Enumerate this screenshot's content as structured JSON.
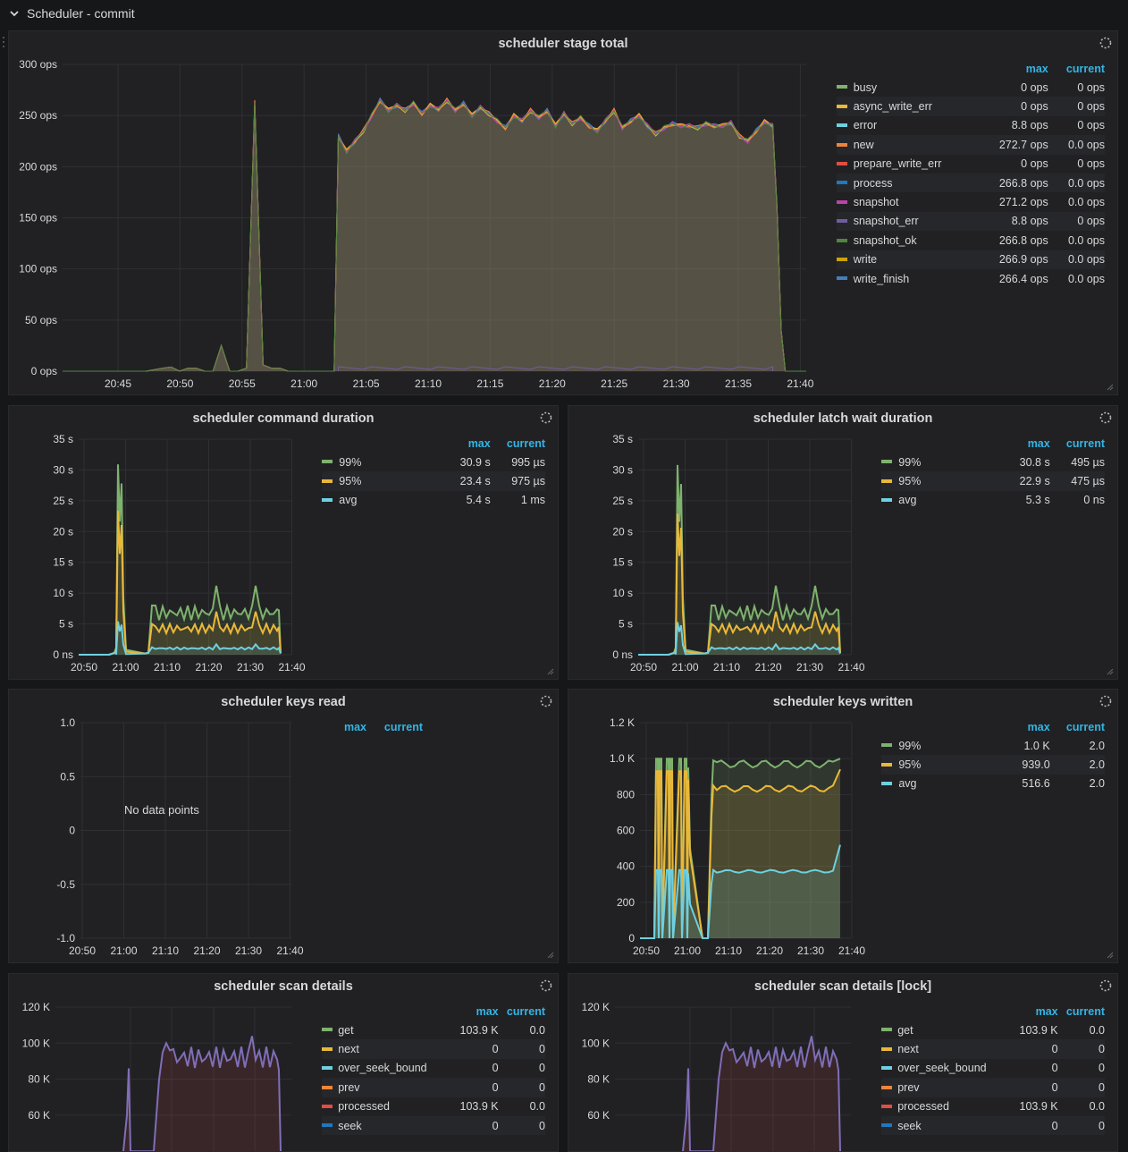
{
  "row": {
    "title": "Scheduler - commit"
  },
  "legend_headers": {
    "max": "max",
    "current": "current"
  },
  "panels": {
    "stage_total": {
      "title": "scheduler stage total",
      "legend": [
        {
          "name": "busy",
          "color": "#7eb26d",
          "max": "0 ops",
          "current": "0 ops"
        },
        {
          "name": "async_write_err",
          "color": "#eab839",
          "max": "0 ops",
          "current": "0 ops"
        },
        {
          "name": "error",
          "color": "#6ed0e0",
          "max": "8.8 ops",
          "current": "0 ops"
        },
        {
          "name": "new",
          "color": "#ef843c",
          "max": "272.7 ops",
          "current": "0.0 ops"
        },
        {
          "name": "prepare_write_err",
          "color": "#e24d42",
          "max": "0 ops",
          "current": "0 ops"
        },
        {
          "name": "process",
          "color": "#1f78c1",
          "max": "266.8 ops",
          "current": "0.0 ops"
        },
        {
          "name": "snapshot",
          "color": "#ba43a9",
          "max": "271.2 ops",
          "current": "0.0 ops"
        },
        {
          "name": "snapshot_err",
          "color": "#705da0",
          "max": "8.8 ops",
          "current": "0 ops"
        },
        {
          "name": "snapshot_ok",
          "color": "#508642",
          "max": "266.8 ops",
          "current": "0.0 ops"
        },
        {
          "name": "write",
          "color": "#cca300",
          "max": "266.9 ops",
          "current": "0.0 ops"
        },
        {
          "name": "write_finish",
          "color": "#447ebc",
          "max": "266.4 ops",
          "current": "0.0 ops"
        }
      ]
    },
    "command_duration": {
      "title": "scheduler command duration",
      "legend": [
        {
          "name": "99%",
          "color": "#7eb26d",
          "max": "30.9 s",
          "current": "995 µs"
        },
        {
          "name": "95%",
          "color": "#eab839",
          "max": "23.4 s",
          "current": "975 µs"
        },
        {
          "name": "avg",
          "color": "#6ed0e0",
          "max": "5.4 s",
          "current": "1 ms"
        }
      ]
    },
    "latch_wait": {
      "title": "scheduler latch wait duration",
      "legend": [
        {
          "name": "99%",
          "color": "#7eb26d",
          "max": "30.8 s",
          "current": "495 µs"
        },
        {
          "name": "95%",
          "color": "#eab839",
          "max": "22.9 s",
          "current": "475 µs"
        },
        {
          "name": "avg",
          "color": "#6ed0e0",
          "max": "5.3 s",
          "current": "0 ns"
        }
      ]
    },
    "keys_read": {
      "title": "scheduler keys read",
      "no_data": "No data points",
      "legend": []
    },
    "keys_written": {
      "title": "scheduler keys written",
      "legend": [
        {
          "name": "99%",
          "color": "#7eb26d",
          "max": "1.0 K",
          "current": "2.0"
        },
        {
          "name": "95%",
          "color": "#eab839",
          "max": "939.0",
          "current": "2.0"
        },
        {
          "name": "avg",
          "color": "#6ed0e0",
          "max": "516.6",
          "current": "2.0"
        }
      ]
    },
    "scan_details": {
      "title": "scheduler scan details",
      "legend": [
        {
          "name": "get",
          "color": "#7eb26d",
          "max": "103.9 K",
          "current": "0.0"
        },
        {
          "name": "next",
          "color": "#eab839",
          "max": "0",
          "current": "0"
        },
        {
          "name": "over_seek_bound",
          "color": "#6ed0e0",
          "max": "0",
          "current": "0"
        },
        {
          "name": "prev",
          "color": "#ef843c",
          "max": "0",
          "current": "0"
        },
        {
          "name": "processed",
          "color": "#e24d42",
          "max": "103.9 K",
          "current": "0.0"
        },
        {
          "name": "seek",
          "color": "#1f78c1",
          "max": "0",
          "current": "0"
        }
      ]
    },
    "scan_details_lock": {
      "title": "scheduler scan details [lock]",
      "legend": [
        {
          "name": "get",
          "color": "#7eb26d",
          "max": "103.9 K",
          "current": "0.0"
        },
        {
          "name": "next",
          "color": "#eab839",
          "max": "0",
          "current": "0"
        },
        {
          "name": "over_seek_bound",
          "color": "#6ed0e0",
          "max": "0",
          "current": "0"
        },
        {
          "name": "prev",
          "color": "#ef843c",
          "max": "0",
          "current": "0"
        },
        {
          "name": "processed",
          "color": "#e24d42",
          "max": "103.9 K",
          "current": "0.0"
        },
        {
          "name": "seek",
          "color": "#1f78c1",
          "max": "0",
          "current": "0"
        }
      ]
    }
  },
  "chart_data": [
    {
      "id": "stage_total",
      "type": "area",
      "title": "scheduler stage total",
      "yticks": [
        "300 ops",
        "250 ops",
        "200 ops",
        "150 ops",
        "100 ops",
        "50 ops",
        "0 ops"
      ],
      "xticks": [
        "20:45",
        "20:50",
        "20:55",
        "21:00",
        "21:05",
        "21:10",
        "21:15",
        "21:20",
        "21:25",
        "21:30",
        "21:35",
        "21:40"
      ],
      "ylim": [
        0,
        300
      ],
      "xlim_minutes": [
        20.0,
        80.5
      ],
      "grid": true,
      "legend_position": "right",
      "series_shape": [
        [
          20,
          0
        ],
        [
          30,
          0
        ],
        [
          32,
          3
        ],
        [
          33,
          4
        ],
        [
          34,
          0
        ],
        [
          35,
          3
        ],
        [
          36,
          3
        ],
        [
          37,
          0
        ],
        [
          38,
          0
        ],
        [
          39,
          25
        ],
        [
          40,
          0
        ],
        [
          41,
          0
        ],
        [
          42,
          3
        ],
        [
          43,
          263
        ],
        [
          44,
          6
        ],
        [
          45,
          3
        ],
        [
          46,
          3
        ],
        [
          47,
          0
        ],
        [
          52,
          0
        ],
        [
          52.5,
          0
        ],
        [
          53,
          230
        ],
        [
          54,
          215
        ],
        [
          55,
          225
        ],
        [
          56,
          235
        ],
        [
          57,
          250
        ],
        [
          58,
          265
        ],
        [
          59,
          255
        ],
        [
          60,
          260
        ],
        [
          61,
          255
        ],
        [
          62,
          262
        ],
        [
          63,
          252
        ],
        [
          64,
          260
        ],
        [
          65,
          256
        ],
        [
          66,
          265
        ],
        [
          67,
          255
        ],
        [
          68,
          262
        ],
        [
          69,
          250
        ],
        [
          70,
          258
        ],
        [
          71,
          252
        ],
        [
          72,
          245
        ],
        [
          73,
          238
        ],
        [
          74,
          250
        ],
        [
          75,
          245
        ],
        [
          76,
          255
        ],
        [
          77,
          248
        ],
        [
          78,
          255
        ],
        [
          79,
          240
        ],
        [
          80,
          252
        ],
        [
          81,
          242
        ],
        [
          82,
          248
        ],
        [
          83,
          240
        ],
        [
          84,
          235
        ],
        [
          85,
          245
        ],
        [
          86,
          255
        ],
        [
          87,
          238
        ],
        [
          88,
          245
        ],
        [
          89,
          250
        ],
        [
          90,
          240
        ],
        [
          91,
          232
        ],
        [
          92,
          238
        ],
        [
          93,
          242
        ],
        [
          94,
          240
        ],
        [
          95,
          240
        ],
        [
          96,
          238
        ],
        [
          97,
          242
        ],
        [
          98,
          240
        ],
        [
          99,
          240
        ],
        [
          100,
          243
        ],
        [
          101,
          230
        ],
        [
          102,
          225
        ],
        [
          103,
          235
        ],
        [
          104,
          244
        ],
        [
          105,
          240
        ],
        [
          105.5,
          160
        ],
        [
          106,
          40
        ],
        [
          106.5,
          0
        ],
        [
          109,
          0
        ]
      ],
      "series_shape_note_unused": ""
    },
    {
      "id": "command_duration",
      "type": "area",
      "title": "scheduler command duration",
      "yticks": [
        "35 s",
        "30 s",
        "25 s",
        "20 s",
        "15 s",
        "10 s",
        "5 s",
        "0 ns"
      ],
      "xticks": [
        "20:50",
        "21:00",
        "21:10",
        "21:20",
        "21:30",
        "21:40"
      ],
      "ylim": [
        0,
        35
      ],
      "grid": true,
      "legend_position": "right",
      "series": [
        {
          "name": "99%",
          "peak": 30.9,
          "plateau": 8
        },
        {
          "name": "95%",
          "peak": 23.4,
          "plateau": 5
        },
        {
          "name": "avg",
          "peak": 5.4,
          "plateau": 1.2
        }
      ]
    },
    {
      "id": "latch_wait",
      "type": "area",
      "title": "scheduler latch wait duration",
      "yticks": [
        "35 s",
        "30 s",
        "25 s",
        "20 s",
        "15 s",
        "10 s",
        "5 s",
        "0 ns"
      ],
      "xticks": [
        "20:50",
        "21:00",
        "21:10",
        "21:20",
        "21:30",
        "21:40"
      ],
      "ylim": [
        0,
        35
      ],
      "grid": true,
      "legend_position": "right",
      "series": [
        {
          "name": "99%",
          "peak": 30.8,
          "plateau": 8
        },
        {
          "name": "95%",
          "peak": 22.9,
          "plateau": 5
        },
        {
          "name": "avg",
          "peak": 5.3,
          "plateau": 1.2
        }
      ]
    },
    {
      "id": "keys_read",
      "type": "line",
      "title": "scheduler keys read",
      "yticks": [
        "1.0",
        "0.5",
        "0",
        "-0.5",
        "-1.0"
      ],
      "xticks": [
        "20:50",
        "21:00",
        "21:10",
        "21:20",
        "21:30",
        "21:40"
      ],
      "ylim": [
        -1,
        1
      ],
      "grid": true,
      "series": []
    },
    {
      "id": "keys_written",
      "type": "area",
      "title": "scheduler keys written",
      "yticks": [
        "1.2 K",
        "1.0 K",
        "800",
        "600",
        "400",
        "200",
        "0"
      ],
      "xticks": [
        "20:50",
        "21:00",
        "21:10",
        "21:20",
        "21:30",
        "21:40"
      ],
      "ylim": [
        0,
        1200
      ],
      "grid": true,
      "legend_position": "right",
      "series": [
        {
          "name": "99%",
          "plateau": 990
        },
        {
          "name": "95%",
          "plateau": 850
        },
        {
          "name": "avg",
          "plateau": 380
        }
      ]
    },
    {
      "id": "scan_details",
      "type": "area",
      "title": "scheduler scan details",
      "yticks": [
        "120 K",
        "100 K",
        "80 K",
        "60 K"
      ],
      "ylim": [
        40000,
        120000
      ],
      "grid": true,
      "legend_position": "right",
      "series": [
        {
          "name": "get",
          "peak": 103900,
          "plateau": 95000
        }
      ]
    },
    {
      "id": "scan_details_lock",
      "type": "area",
      "title": "scheduler scan details [lock]",
      "yticks": [
        "120 K",
        "100 K",
        "80 K",
        "60 K"
      ],
      "ylim": [
        40000,
        120000
      ],
      "grid": true,
      "legend_position": "right",
      "series": [
        {
          "name": "get",
          "peak": 103900,
          "plateau": 95000
        }
      ]
    }
  ]
}
